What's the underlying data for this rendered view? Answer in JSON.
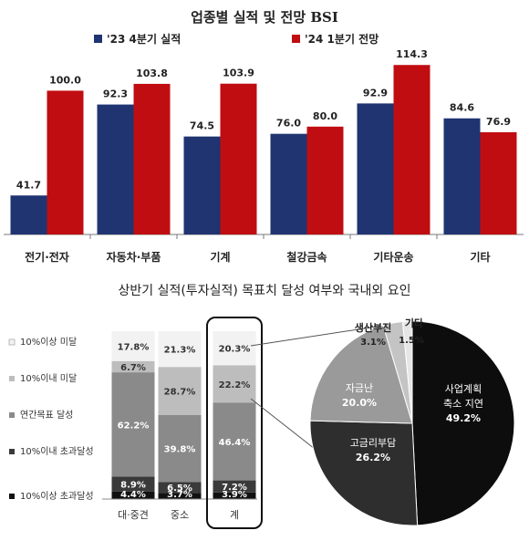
{
  "chart_data": [
    {
      "type": "bar",
      "title": "업종별 실적 및 전망 BSI",
      "categories": [
        "전기·전자",
        "자동차·부품",
        "기계",
        "철강금속",
        "기타운송",
        "기타"
      ],
      "series": [
        {
          "name": "'23 4분기 실적",
          "color": "#1f3471",
          "values": [
            41.7,
            92.3,
            74.5,
            76.0,
            92.9,
            84.6
          ],
          "labels": [
            "41.7",
            "92.3",
            "74.5",
            "76.0",
            "92.9",
            "84.6"
          ]
        },
        {
          "name": "'24 1분기 전망",
          "color": "#c00d12",
          "values": [
            100.0,
            103.8,
            103.9,
            80.0,
            114.3,
            76.9
          ],
          "labels": [
            "100.0",
            "103.8",
            "103.9",
            "80.0",
            "114.3",
            "76.9"
          ]
        }
      ],
      "ylim": [
        20,
        120
      ],
      "legend": "top",
      "grid": false
    },
    {
      "type": "bar",
      "stacked": true,
      "percent": true,
      "title": "상반기 실적(투자실적) 목표치 달성 여부와 국내외 요인",
      "categories": [
        "대·중견",
        "중소",
        "계"
      ],
      "highlight_category": "계",
      "series": [
        {
          "name": "10%이상 초과달성",
          "color": "#111111",
          "values": [
            4.4,
            3.7,
            3.9
          ],
          "labels": [
            "4.4%",
            "3.7%",
            "3.9%"
          ]
        },
        {
          "name": "10%이내 초과달성",
          "color": "#3a3a3a",
          "values": [
            8.9,
            6.5,
            7.2
          ],
          "labels": [
            "8.9%",
            "6.5%",
            "7.2%"
          ]
        },
        {
          "name": "연간목표 달성",
          "color": "#8a8a8a",
          "values": [
            62.2,
            39.8,
            46.4
          ],
          "labels": [
            "62.2%",
            "39.8%",
            "46.4%"
          ]
        },
        {
          "name": "10%이내 미달",
          "color": "#bdbdbd",
          "values": [
            6.7,
            28.7,
            22.2
          ],
          "labels": [
            "6.7%",
            "28.7%",
            "22.2%"
          ]
        },
        {
          "name": "10%이상 미달",
          "color": "#f2f2f2",
          "values": [
            17.8,
            21.3,
            20.3
          ],
          "labels": [
            "17.8%",
            "21.3%",
            "20.3%"
          ]
        }
      ],
      "legend": "left"
    },
    {
      "type": "pie",
      "slices": [
        {
          "name": "사업계획 축소 지연",
          "name_lines": [
            "사업계획",
            "축소 지연"
          ],
          "value": 49.2,
          "label": "49.2%",
          "color": "#0d0d0d"
        },
        {
          "name": "고금리부담",
          "name_lines": [
            "고금리부담"
          ],
          "value": 26.2,
          "label": "26.2%",
          "color": "#2e2e2e"
        },
        {
          "name": "자금난",
          "name_lines": [
            "자금난"
          ],
          "value": 20.0,
          "label": "20.0%",
          "color": "#9a9a9a"
        },
        {
          "name": "생산부진",
          "name_lines": [
            "생산부진"
          ],
          "value": 3.1,
          "label": "3.1%",
          "color": "#c4c4c4"
        },
        {
          "name": "기타",
          "name_lines": [
            "기타"
          ],
          "value": 1.5,
          "label": "1.5%",
          "color": "#e6e6e6"
        }
      ]
    }
  ]
}
